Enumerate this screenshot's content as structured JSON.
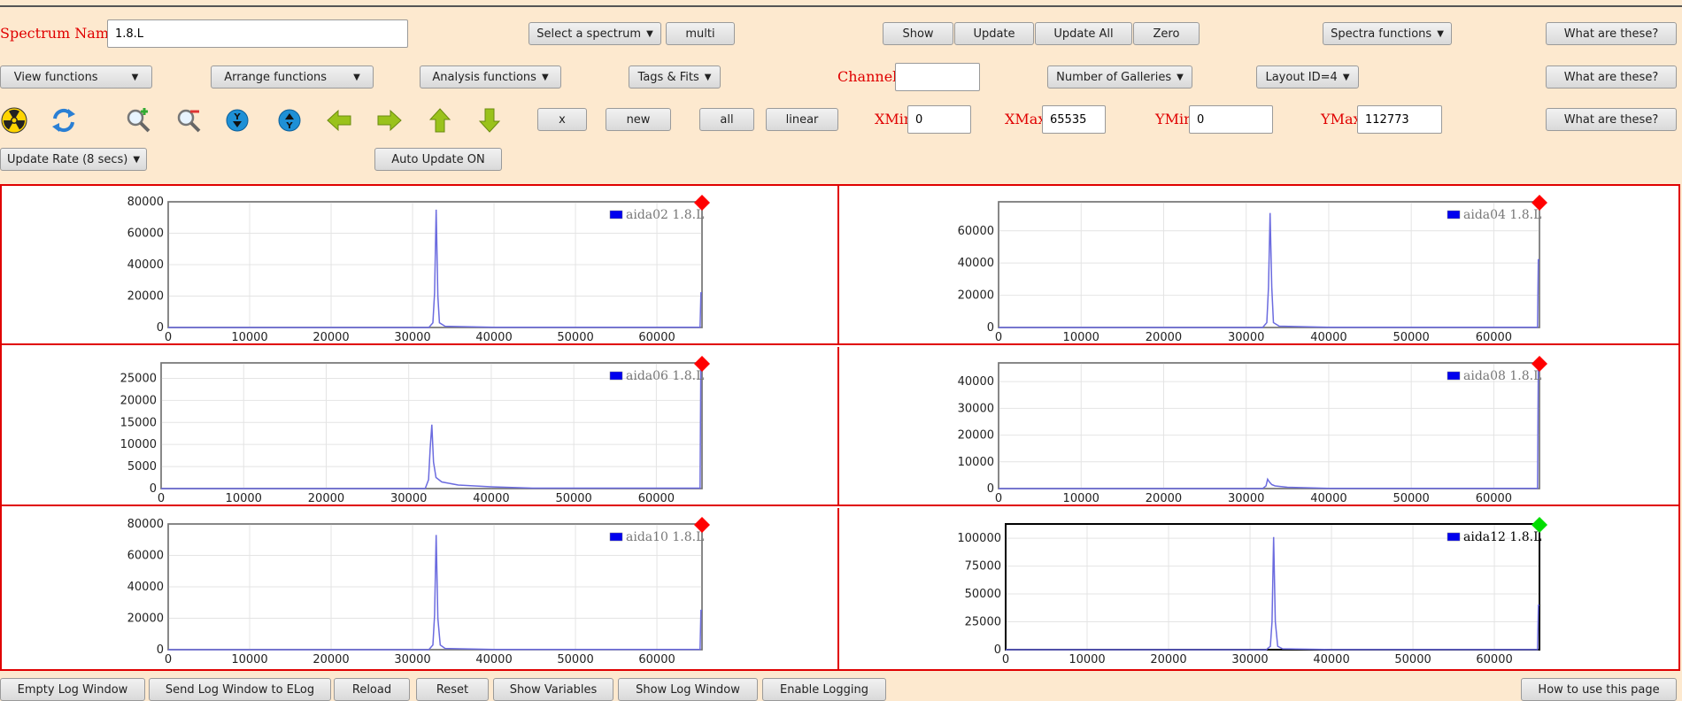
{
  "toolbar1": {
    "spectrum_name_label": "Spectrum Name:",
    "spectrum_name_value": "1.8.L",
    "select_spectrum": "Select a spectrum",
    "multi": "multi",
    "show": "Show",
    "update": "Update",
    "update_all": "Update All",
    "zero": "Zero",
    "spectra_functions": "Spectra functions",
    "what_are_these": "What are these?"
  },
  "toolbar2": {
    "view_functions": "View functions",
    "arrange_functions": "Arrange functions",
    "analysis_functions": "Analysis functions",
    "tags_fits": "Tags & Fits",
    "channel_label": "Channel:",
    "channel_value": "",
    "number_of_galleries": "Number of Galleries",
    "layout_id": "Layout ID=4",
    "what_are_these": "What are these?"
  },
  "toolbar3": {
    "icons": [
      "radiation-icon",
      "refresh-icon",
      "zoom-in-icon",
      "zoom-out-icon",
      "y-down-icon",
      "y-up-icon",
      "arrow-left-icon",
      "arrow-right-icon",
      "arrow-up-icon",
      "arrow-down-icon"
    ],
    "x": "x",
    "new": "new",
    "all": "all",
    "linear": "linear",
    "xmin_label": "XMin",
    "xmin_value": "0",
    "xmax_label": "XMax",
    "xmax_value": "65535",
    "ymin_label": "YMin",
    "ymin_value": "0",
    "ymax_label": "YMax",
    "ymax_value": "112773",
    "what_are_these": "What are these?"
  },
  "toolbar4": {
    "update_rate": "Update Rate (8 secs)",
    "auto_update": "Auto Update ON"
  },
  "bottom": {
    "empty_log": "Empty Log Window",
    "send_log": "Send Log Window to ELog",
    "reload": "Reload",
    "reset": "Reset",
    "show_variables": "Show Variables",
    "show_log": "Show Log Window",
    "enable_logging": "Enable Logging",
    "how_to": "How to use this page"
  },
  "colors": {
    "background": "#fde9cf",
    "red_label": "#e00000",
    "series": "#0000ee",
    "line": "#6b6bdf",
    "marker_inactive": "#ff0000",
    "marker_active": "#00dd00"
  },
  "chart_data": [
    {
      "type": "line",
      "legend": "aida02 1.8.L",
      "status": "inactive",
      "xlim": [
        0,
        65535
      ],
      "ylim": [
        0,
        80000
      ],
      "yticks": [
        0,
        20000,
        40000,
        60000,
        80000
      ],
      "xticks": [
        0,
        10000,
        20000,
        30000,
        40000,
        50000,
        60000
      ],
      "series": [
        {
          "name": "aida02 1.8.L",
          "x": [
            0,
            32000,
            32500,
            32700,
            32900,
            33100,
            33300,
            34000,
            40000,
            65300,
            65400,
            65535
          ],
          "y": [
            0,
            0,
            3000,
            22000,
            75000,
            20000,
            3000,
            800,
            100,
            100,
            22000,
            22000
          ]
        }
      ]
    },
    {
      "type": "line",
      "legend": "aida04 1.8.L",
      "status": "inactive",
      "xlim": [
        0,
        65535
      ],
      "ylim": [
        0,
        78000
      ],
      "yticks": [
        0,
        20000,
        40000,
        60000
      ],
      "xticks": [
        0,
        10000,
        20000,
        30000,
        40000,
        50000,
        60000
      ],
      "series": [
        {
          "name": "aida04 1.8.L",
          "x": [
            0,
            32000,
            32500,
            32700,
            32900,
            33100,
            33300,
            34000,
            40000,
            65300,
            65400,
            65535
          ],
          "y": [
            0,
            0,
            3000,
            25000,
            71000,
            25000,
            3000,
            800,
            100,
            100,
            42000,
            42000
          ]
        }
      ]
    },
    {
      "type": "line",
      "legend": "aida06 1.8.L",
      "status": "inactive",
      "xlim": [
        0,
        65535
      ],
      "ylim": [
        0,
        28500
      ],
      "yticks": [
        0,
        5000,
        10000,
        15000,
        20000,
        25000
      ],
      "xticks": [
        0,
        10000,
        20000,
        30000,
        40000,
        50000,
        60000
      ],
      "series": [
        {
          "name": "aida06 1.8.L",
          "x": [
            0,
            32000,
            32400,
            32600,
            32800,
            33000,
            33300,
            34000,
            36000,
            40000,
            45000,
            65300,
            65400,
            65535
          ],
          "y": [
            0,
            0,
            2000,
            9000,
            14500,
            6000,
            2500,
            1500,
            800,
            400,
            100,
            100,
            28000,
            28000
          ]
        }
      ]
    },
    {
      "type": "line",
      "legend": "aida08 1.8.L",
      "status": "inactive",
      "xlim": [
        0,
        65535
      ],
      "ylim": [
        0,
        47000
      ],
      "yticks": [
        0,
        10000,
        20000,
        30000,
        40000
      ],
      "xticks": [
        0,
        10000,
        20000,
        30000,
        40000,
        50000,
        60000
      ],
      "series": [
        {
          "name": "aida08 1.8.L",
          "x": [
            0,
            32000,
            32400,
            32600,
            32800,
            33100,
            33500,
            35000,
            40000,
            65300,
            65400,
            65535
          ],
          "y": [
            0,
            0,
            1000,
            3500,
            2500,
            1500,
            1000,
            500,
            100,
            100,
            46000,
            46000
          ]
        }
      ]
    },
    {
      "type": "line",
      "legend": "aida10 1.8.L",
      "status": "inactive",
      "xlim": [
        0,
        65535
      ],
      "ylim": [
        0,
        80000
      ],
      "yticks": [
        0,
        20000,
        40000,
        60000,
        80000
      ],
      "xticks": [
        0,
        10000,
        20000,
        30000,
        40000,
        50000,
        60000
      ],
      "series": [
        {
          "name": "aida10 1.8.L",
          "x": [
            0,
            32000,
            32500,
            32700,
            32900,
            33100,
            33400,
            34000,
            40000,
            65300,
            65400,
            65535
          ],
          "y": [
            0,
            0,
            3000,
            22000,
            73000,
            20000,
            3000,
            800,
            100,
            100,
            25000,
            25000
          ]
        }
      ]
    },
    {
      "type": "line",
      "legend": "aida12 1.8.L",
      "status": "active",
      "xlim": [
        0,
        65535
      ],
      "ylim": [
        0,
        112773
      ],
      "yticks": [
        0,
        25000,
        50000,
        75000,
        100000
      ],
      "xticks": [
        0,
        10000,
        20000,
        30000,
        40000,
        50000,
        60000
      ],
      "series": [
        {
          "name": "aida12 1.8.L",
          "x": [
            0,
            32000,
            32500,
            32700,
            32900,
            33100,
            33400,
            34000,
            40000,
            65300,
            65400,
            65535
          ],
          "y": [
            0,
            0,
            3000,
            25000,
            101000,
            25000,
            3000,
            800,
            100,
            100,
            40000,
            40000
          ]
        }
      ]
    }
  ]
}
